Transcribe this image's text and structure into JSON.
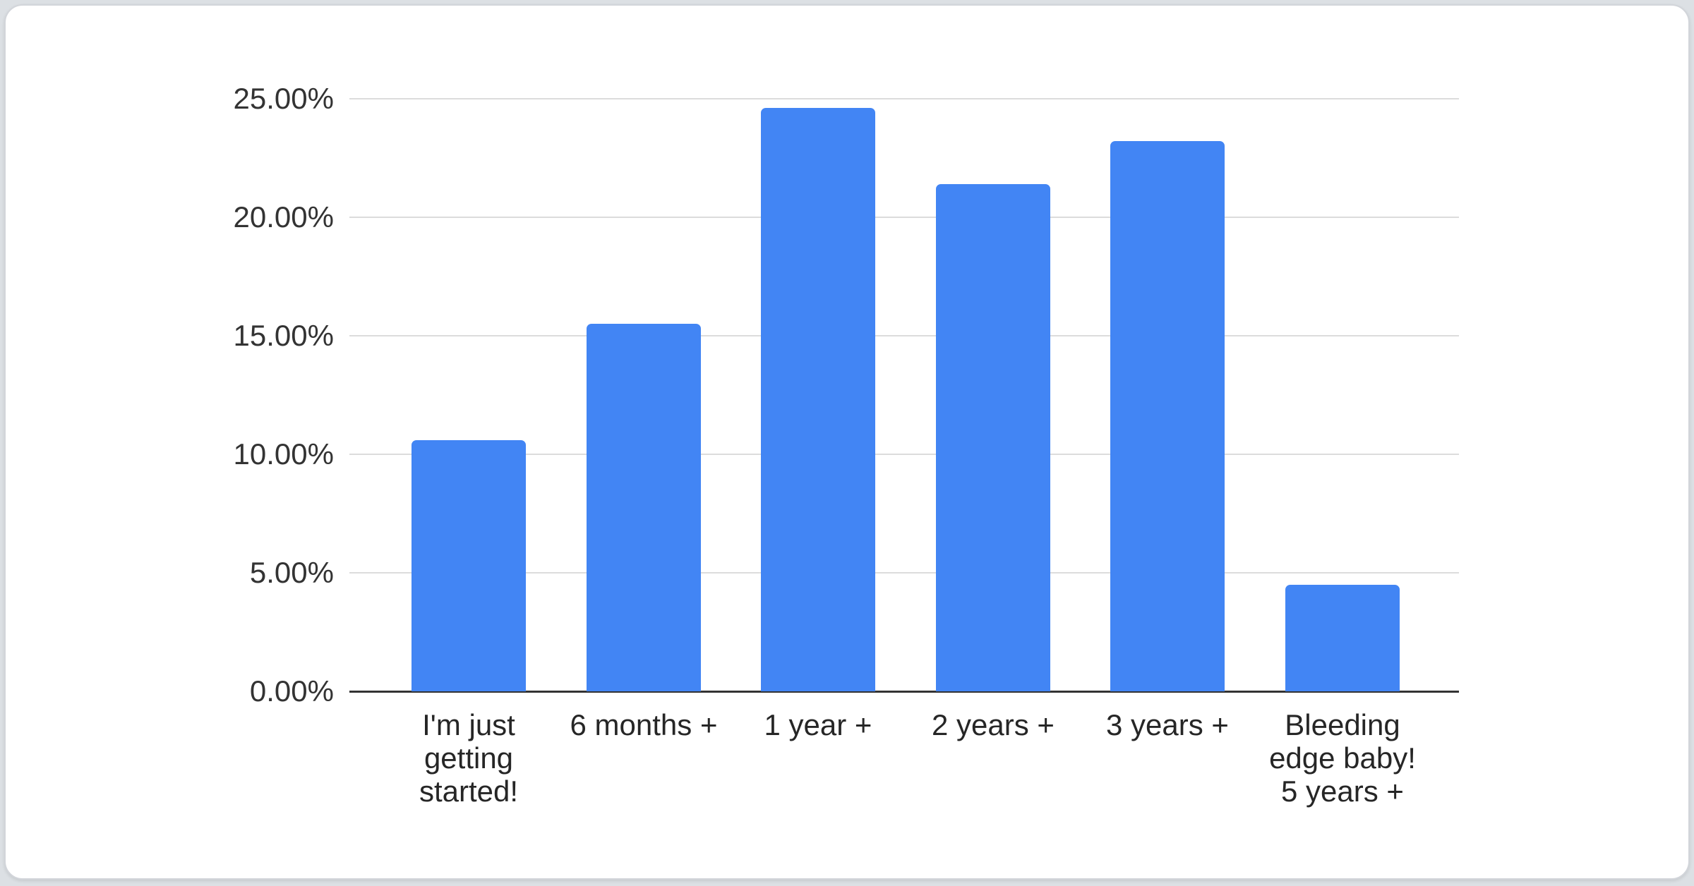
{
  "chart_data": {
    "type": "bar",
    "title": "",
    "xlabel": "",
    "ylabel": "",
    "categories": [
      "I'm just\ngetting\nstarted!",
      "6 months +",
      "1 year +",
      "2 years +",
      "3 years +",
      "Bleeding\nedge baby!\n5 years +"
    ],
    "values": [
      10.6,
      15.5,
      24.6,
      21.4,
      23.2,
      4.5
    ],
    "value_unit": "percent",
    "y_ticks": [
      "0.00%",
      "5.00%",
      "10.00%",
      "15.00%",
      "20.00%",
      "25.00%"
    ],
    "ylim": [
      0,
      25
    ],
    "grid": true,
    "legend": "none",
    "bar_color": "#4285F4",
    "axis_line_color": "#333333",
    "gridline_color": "#dcdcdc"
  }
}
